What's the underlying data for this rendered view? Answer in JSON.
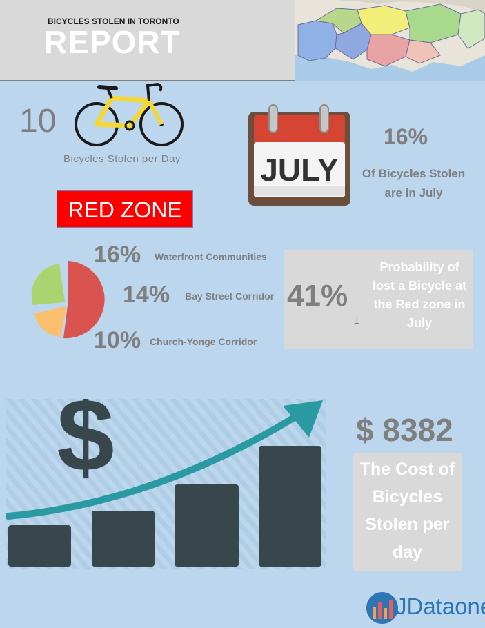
{
  "header": {
    "subtitle": "BICYCLES STOLEN IN TORONTO",
    "title": "REPORT"
  },
  "stats": {
    "per_day_count": "10",
    "per_day_label": "Bicycles Stolen per Day",
    "month_name": "JULY",
    "month_pct": "16%",
    "month_label": "Of Bicycles Stolen are in July"
  },
  "red_zone": {
    "label": "RED ZONE",
    "neighbourhoods": [
      {
        "pct": "16%",
        "name": "Waterfront Communities"
      },
      {
        "pct": "14%",
        "name": "Bay Street Corridor"
      },
      {
        "pct": "10%",
        "name": "Church-Yonge Corridor"
      }
    ],
    "pie_colors": {
      "waterfront": "#d9534f",
      "bay": "#a9d46f",
      "church": "#fbbf6e"
    }
  },
  "probability": {
    "pct": "41%",
    "label": "Probability of lost a Bicycle at the Red zone in July"
  },
  "cost": {
    "value": "$ 8382",
    "label": "The Cost of Bicycles Stolen per day"
  },
  "logo": {
    "text": "JDataone"
  },
  "colors": {
    "background": "#bcd6ee",
    "header": "#d9d9d9",
    "red": "#ff0000",
    "bars": "#37474b",
    "arrow": "#2a9aa2"
  }
}
